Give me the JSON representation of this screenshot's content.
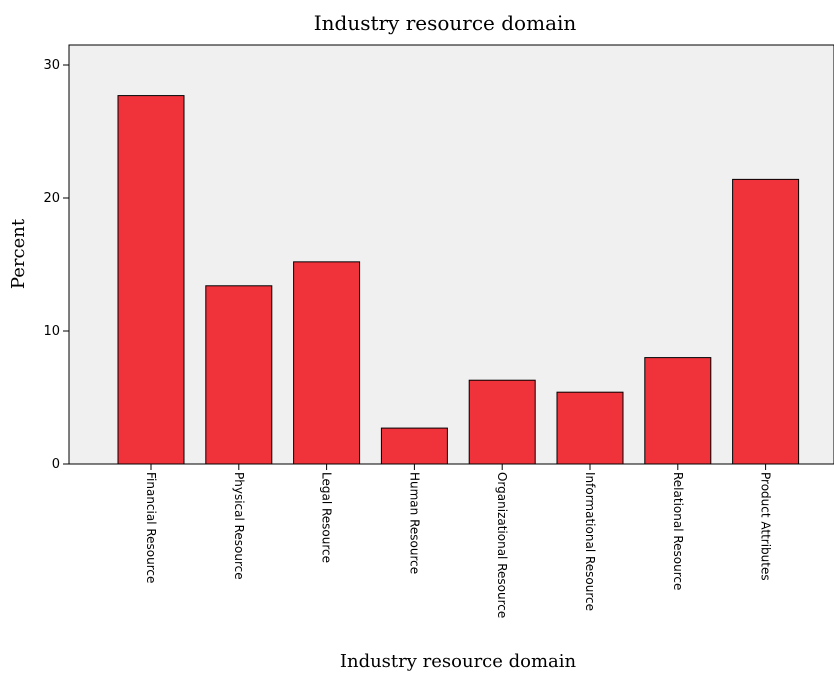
{
  "chart_data": {
    "type": "bar",
    "title": "Industry resource domain",
    "xlabel": "Industry resource domain",
    "ylabel": "Percent",
    "categories": [
      "Financial Resource",
      "Physical Resource",
      "Legal Resource",
      "Human Resource",
      "Organizational Resource",
      "Informational Resource",
      "Relational Resource",
      "Product Attributes"
    ],
    "values": [
      27.7,
      13.4,
      15.2,
      2.7,
      6.3,
      5.4,
      8.0,
      21.4
    ],
    "ylim": [
      0,
      30
    ],
    "yticks": [
      "0",
      "10",
      "20",
      "30"
    ],
    "grid": false,
    "bar_color": "#f0323b",
    "plot_background": "#f0f0f0"
  }
}
